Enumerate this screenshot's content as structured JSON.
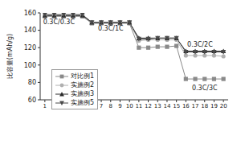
{
  "chart_data": {
    "type": "line",
    "y_label": "比容量(mAh/g)",
    "x": [
      1,
      2,
      3,
      4,
      5,
      6,
      7,
      8,
      9,
      10,
      11,
      12,
      13,
      14,
      15,
      16,
      17,
      18,
      19,
      20
    ],
    "xlim": [
      0.5,
      20.5
    ],
    "xticks": [
      1,
      2,
      3,
      4,
      5,
      6,
      7,
      8,
      9,
      10,
      11,
      12,
      13,
      14,
      15,
      16,
      17,
      18,
      19,
      20
    ],
    "ylim": [
      60,
      160
    ],
    "yticks": [
      60,
      80,
      100,
      120,
      140,
      160
    ],
    "grid": false,
    "legend": "lower left",
    "series": [
      {
        "name": "对比例1",
        "color": "#8a8a8a",
        "marker": "square",
        "line_style": "solid",
        "values": [
          156,
          156,
          156,
          156,
          156,
          148,
          148,
          148,
          148,
          148,
          120,
          120,
          121,
          121,
          122,
          84,
          84,
          84,
          84,
          84
        ]
      },
      {
        "name": "实施例2",
        "color": "#b0b0b0",
        "marker": "circle",
        "line_style": "solid",
        "values": [
          157,
          157,
          157,
          157,
          157,
          149,
          149,
          149,
          149,
          149,
          128,
          129,
          129,
          129,
          129,
          111,
          111,
          111,
          111,
          110
        ]
      },
      {
        "name": "实施例3",
        "color": "#2a2a2a",
        "marker": "triangle",
        "line_style": "solid",
        "values": [
          157,
          157,
          157,
          157,
          157,
          149,
          149,
          149,
          149,
          149,
          131,
          131,
          131,
          131,
          131,
          116,
          116,
          116,
          116,
          116
        ]
      },
      {
        "name": "实施例5",
        "color": "#4a4a4a",
        "marker": "triangle-down",
        "line_style": "solid",
        "values": [
          158,
          158,
          158,
          158,
          158,
          149,
          149,
          149,
          149,
          149,
          130,
          130,
          131,
          131,
          131,
          115,
          115,
          115,
          115,
          115
        ]
      }
    ],
    "annotations": [
      {
        "text": "0.3C/0.3C",
        "x": 2.5,
        "y": 150
      },
      {
        "text": "0.3C/1C",
        "x": 8,
        "y": 142
      },
      {
        "text": "0.3C/2C",
        "x": 17.5,
        "y": 124
      },
      {
        "text": "0.3C/3C",
        "x": 18,
        "y": 74
      }
    ]
  }
}
